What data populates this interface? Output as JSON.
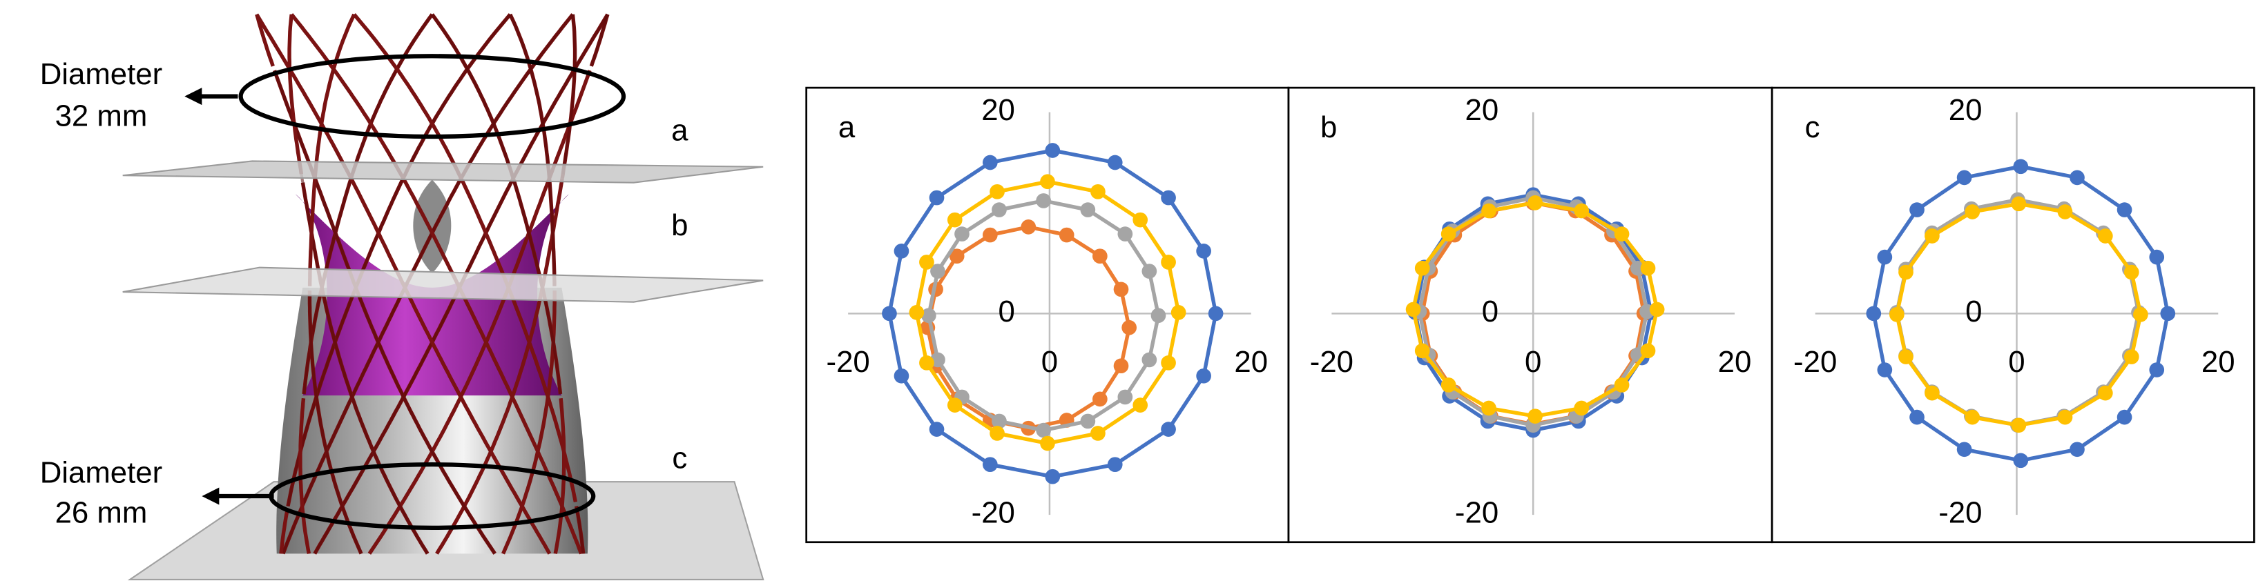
{
  "illustration": {
    "top_label": [
      "Diameter",
      "32 mm"
    ],
    "bottom_label": [
      "Diameter",
      "26 mm"
    ],
    "planes": [
      "a",
      "b",
      "c"
    ]
  },
  "chart_data": [
    {
      "type": "scatter",
      "label": "a",
      "lines": true,
      "xlim": [
        -20,
        20
      ],
      "ylim": [
        -20,
        20
      ],
      "xticks": [
        -20,
        0,
        20
      ],
      "yticks": [
        -20,
        0,
        20
      ],
      "series": [
        {
          "color": "#4472c4",
          "x": [
            16.5,
            15.3,
            11.8,
            6.5,
            0.3,
            -5.9,
            -11.2,
            -14.7,
            -15.9,
            -14.7,
            -11.2,
            -5.9,
            0.3,
            6.5,
            11.8,
            15.3
          ],
          "values": [
            0,
            6.2,
            11.5,
            15.0,
            16.2,
            15.0,
            11.5,
            6.2,
            0,
            -6.2,
            -11.5,
            -15.0,
            -16.2,
            -15.0,
            -11.5,
            -6.2
          ]
        },
        {
          "color": "#ed7d31",
          "x": [
            7.9,
            7.1,
            5.0,
            1.7,
            -2.1,
            -5.9,
            -9.2,
            -11.3,
            -12.1,
            -11.3,
            -9.2,
            -5.9,
            -2.1,
            1.7,
            5.0,
            7.1
          ],
          "values": [
            -1.4,
            2.4,
            5.7,
            7.8,
            8.6,
            7.8,
            5.7,
            2.4,
            -1.4,
            -5.2,
            -8.5,
            -10.6,
            -11.4,
            -10.6,
            -8.5,
            -5.2
          ]
        },
        {
          "color": "#a5a5a5",
          "x": [
            10.8,
            9.9,
            7.5,
            3.8,
            -0.6,
            -5.0,
            -8.7,
            -11.1,
            -12.0,
            -11.1,
            -8.7,
            -5.0,
            -0.6,
            3.8,
            7.5,
            9.9
          ],
          "values": [
            -0.2,
            4.2,
            7.9,
            10.3,
            11.2,
            10.3,
            7.9,
            4.2,
            -0.2,
            -4.6,
            -8.3,
            -10.7,
            -11.6,
            -10.7,
            -8.3,
            -4.6
          ]
        },
        {
          "color": "#ffc000",
          "x": [
            12.8,
            11.8,
            9.0,
            4.8,
            -0.2,
            -5.2,
            -9.4,
            -12.2,
            -13.2,
            -12.2,
            -9.4,
            -5.2,
            -0.2,
            4.8,
            9.0,
            11.8
          ],
          "values": [
            0.1,
            5.1,
            9.3,
            12.1,
            13.1,
            12.1,
            9.3,
            5.1,
            0.1,
            -4.9,
            -9.1,
            -11.9,
            -12.9,
            -11.9,
            -9.1,
            -4.9
          ]
        }
      ]
    },
    {
      "type": "scatter",
      "label": "b",
      "lines": true,
      "xlim": [
        -20,
        20
      ],
      "ylim": [
        -20,
        20
      ],
      "xticks": [
        -20,
        0,
        20
      ],
      "yticks": [
        -20,
        0,
        20
      ],
      "series": [
        {
          "color": "#4472c4",
          "x": [
            11.7,
            10.8,
            8.3,
            4.5,
            0,
            -4.5,
            -8.3,
            -10.8,
            -11.7,
            -10.8,
            -8.3,
            -4.5,
            0,
            4.5,
            8.3,
            10.8
          ],
          "values": [
            0.1,
            4.6,
            8.4,
            10.9,
            11.8,
            10.9,
            8.4,
            4.6,
            0.1,
            -4.4,
            -8.2,
            -10.7,
            -11.6,
            -10.7,
            -8.2,
            -4.4
          ]
        },
        {
          "color": "#ed7d31",
          "x": [
            11,
            10.2,
            7.8,
            4.2,
            0,
            -4.2,
            -7.8,
            -10.2,
            -11,
            -10.2,
            -7.8,
            -4.2,
            0,
            4.2,
            7.8,
            10.2
          ],
          "values": [
            0,
            4.2,
            7.8,
            10.2,
            11,
            10.2,
            7.8,
            4.2,
            0,
            -4.2,
            -7.8,
            -10.2,
            -11,
            -10.2,
            -7.8,
            -4.2
          ]
        },
        {
          "color": "#a5a5a5",
          "x": [
            11.3,
            10.4,
            8.0,
            4.3,
            0,
            -4.3,
            -8.0,
            -10.4,
            -11.3,
            -10.4,
            -8.0,
            -4.3,
            0,
            4.3,
            8.0,
            10.4
          ],
          "values": [
            0.2,
            4.5,
            8.2,
            10.6,
            11.5,
            10.6,
            8.2,
            4.5,
            0.2,
            -4.1,
            -7.8,
            -10.2,
            -11.1,
            -10.2,
            -7.8,
            -4.1
          ]
        },
        {
          "color": "#ffc000",
          "x": [
            12.3,
            11.4,
            8.8,
            4.8,
            0.2,
            -4.4,
            -8.4,
            -11.0,
            -11.9,
            -11.0,
            -8.4,
            -4.4,
            0.2,
            4.8,
            8.8,
            11.4
          ],
          "values": [
            0.4,
            4.5,
            7.9,
            10.2,
            11.0,
            10.2,
            7.9,
            4.5,
            0.4,
            -3.7,
            -7.1,
            -9.4,
            -10.2,
            -9.4,
            -7.1,
            -3.7
          ]
        }
      ]
    },
    {
      "type": "scatter",
      "label": "c",
      "lines": true,
      "xlim": [
        -20,
        20
      ],
      "ylim": [
        -20,
        20
      ],
      "xticks": [
        -20,
        0,
        20
      ],
      "yticks": [
        -20,
        0,
        20
      ],
      "series": [
        {
          "color": "#4472c4",
          "x": [
            15.0,
            13.9,
            10.7,
            6.0,
            0.4,
            -5.2,
            -9.9,
            -13.1,
            -14.2,
            -13.1,
            -9.9,
            -5.2,
            0.4,
            6.0,
            10.7,
            13.9
          ],
          "values": [
            0,
            5.6,
            10.3,
            13.5,
            14.6,
            13.5,
            10.3,
            5.6,
            0,
            -5.6,
            -10.3,
            -13.5,
            -14.6,
            -13.5,
            -10.3,
            -5.6
          ]
        },
        {
          "color": "#a5a5a5",
          "x": [
            12.1,
            11.2,
            8.6,
            4.7,
            0.1,
            -4.5,
            -8.4,
            -11.0,
            -11.9,
            -11.0,
            -8.4,
            -4.5,
            0.1,
            4.7,
            8.6,
            11.2
          ],
          "values": [
            0.1,
            4.4,
            8.0,
            10.4,
            11.3,
            10.4,
            8.0,
            4.4,
            0.1,
            -4.2,
            -7.8,
            -10.2,
            -11.1,
            -10.2,
            -7.8,
            -4.2
          ]
        },
        {
          "color": "#ffc000",
          "x": [
            12.3,
            11.4,
            8.8,
            4.8,
            0.2,
            -4.4,
            -8.4,
            -11.0,
            -11.9,
            -11.0,
            -8.4,
            -4.4,
            0.2,
            4.8,
            8.8,
            11.4
          ],
          "values": [
            -0.1,
            4.1,
            7.7,
            10.1,
            10.9,
            10.1,
            7.7,
            4.1,
            -0.1,
            -4.3,
            -7.9,
            -10.3,
            -11.1,
            -10.3,
            -7.9,
            -4.3
          ]
        }
      ]
    }
  ]
}
